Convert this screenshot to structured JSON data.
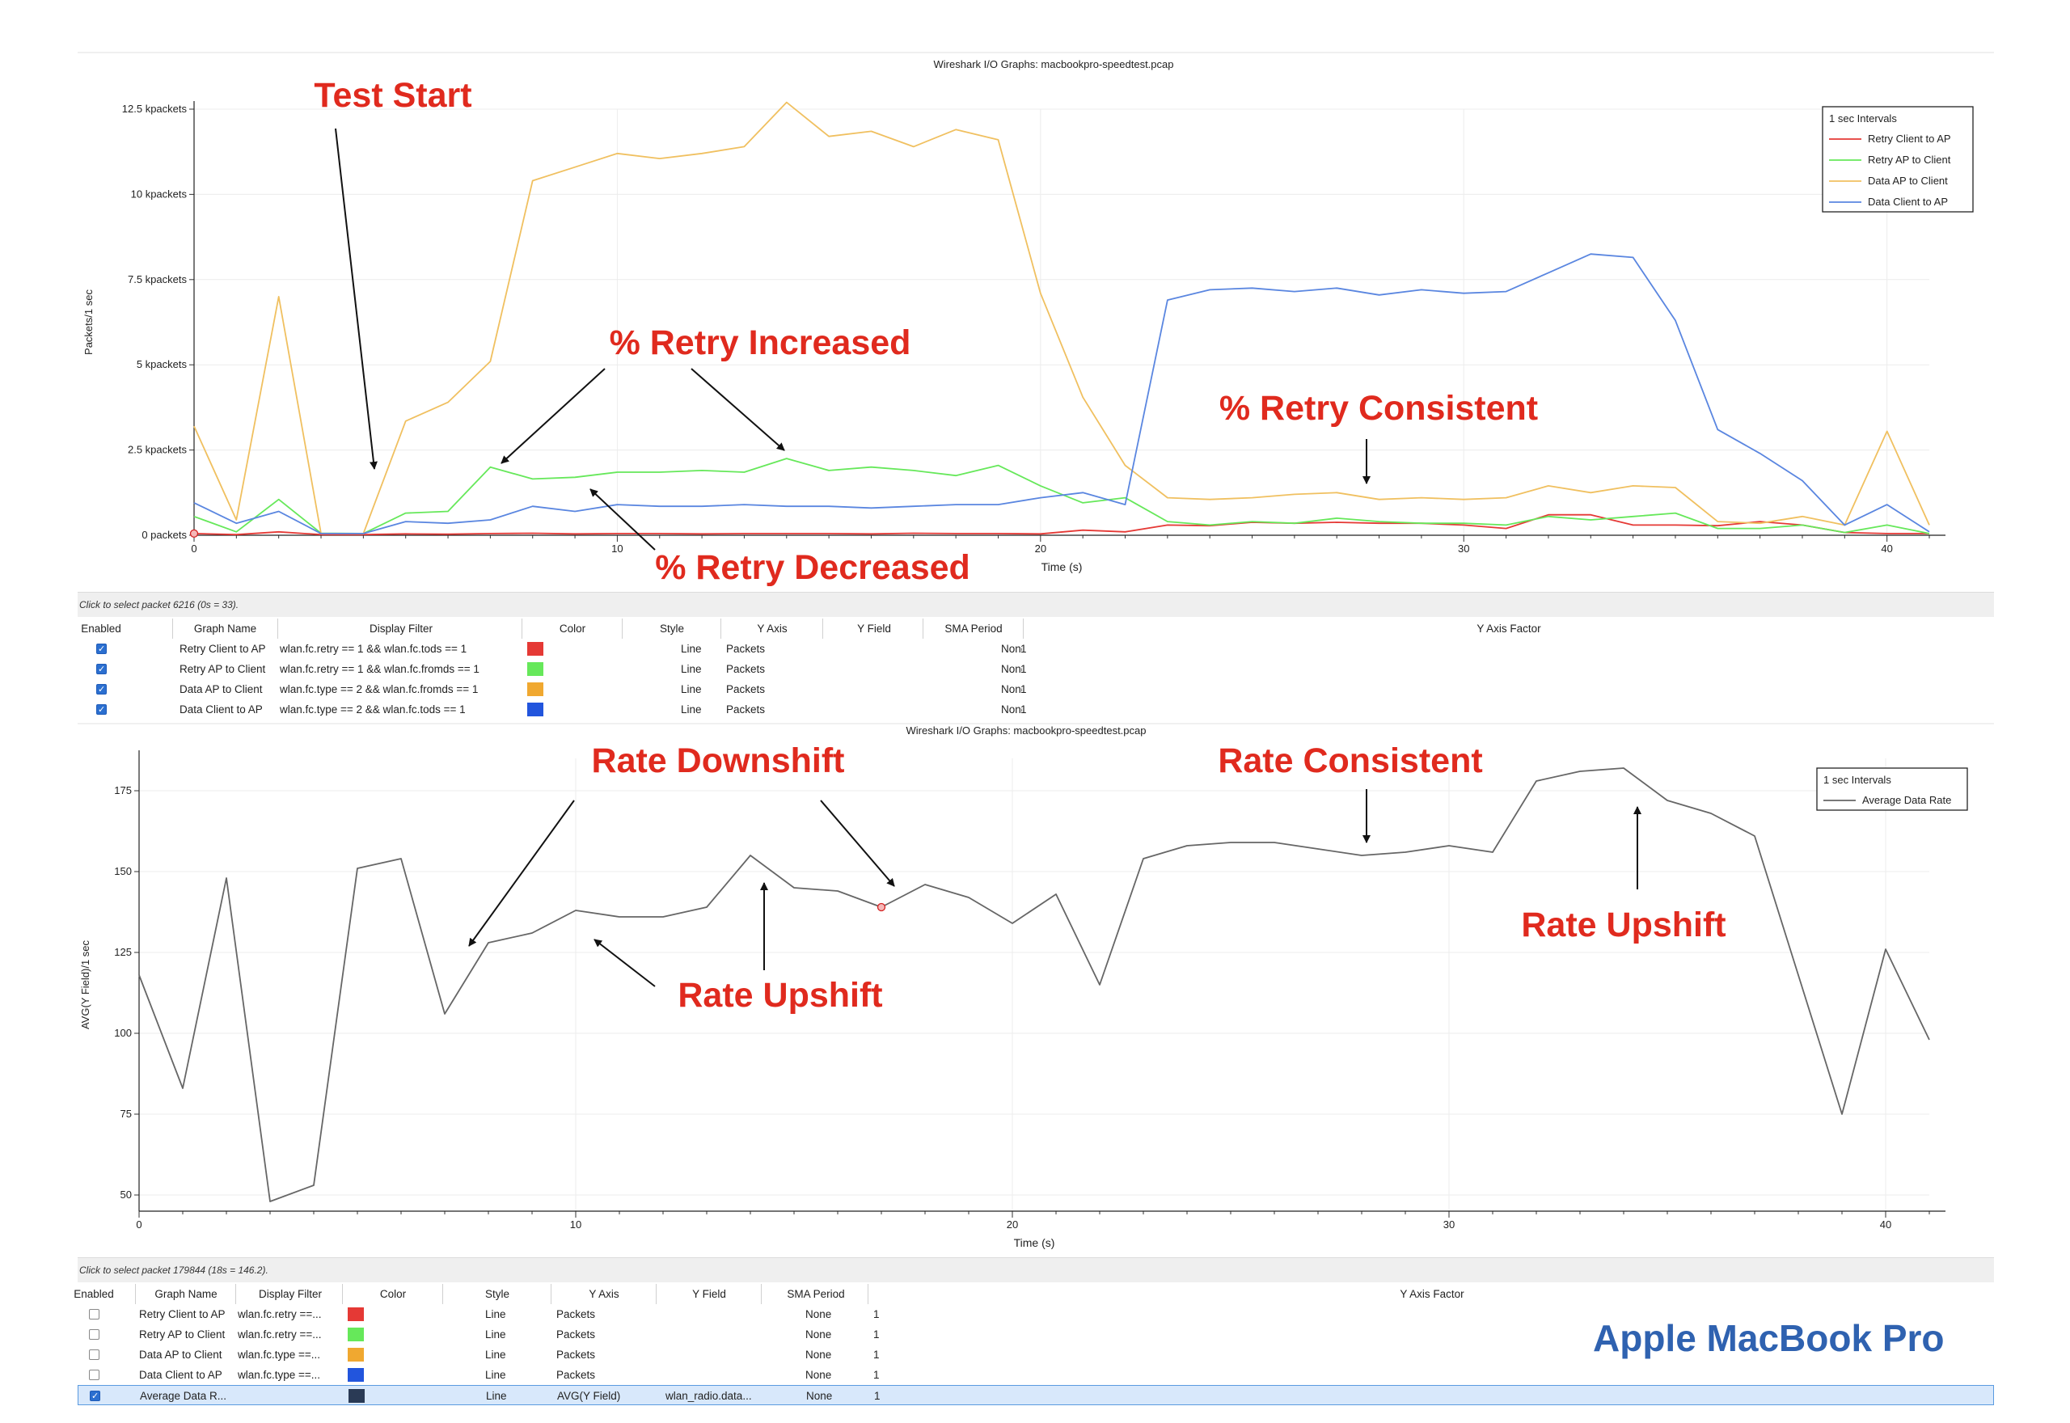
{
  "brand": "Apple MacBook Pro",
  "chart_data": [
    {
      "type": "line",
      "title": "Wireshark I/O Graphs: macbookpro-speedtest.pcap",
      "xlabel": "Time (s)",
      "ylabel": "Packets/1 sec",
      "xlim": [
        0,
        41
      ],
      "ylim": [
        0,
        12500
      ],
      "xticks": [
        0,
        10,
        20,
        30,
        40
      ],
      "yticks": [
        0,
        2500,
        5000,
        7500,
        10000,
        12500
      ],
      "ytick_labels": [
        "0 packets",
        "2.5 kpackets",
        "5 kpackets",
        "7.5 kpackets",
        "10 kpackets",
        "12.5 kpackets"
      ],
      "legend_title": "1 sec Intervals",
      "legend_position": "top-right",
      "x": [
        0,
        1,
        2,
        3,
        4,
        5,
        6,
        7,
        8,
        9,
        10,
        11,
        12,
        13,
        14,
        15,
        16,
        17,
        18,
        19,
        20,
        21,
        22,
        23,
        24,
        25,
        26,
        27,
        28,
        29,
        30,
        31,
        32,
        33,
        34,
        35,
        36,
        37,
        38,
        39,
        40,
        41
      ],
      "series": [
        {
          "name": "Retry Client to AP",
          "color": "#e53935",
          "values": [
            50,
            20,
            100,
            20,
            20,
            40,
            30,
            50,
            60,
            40,
            50,
            50,
            40,
            50,
            50,
            50,
            40,
            60,
            50,
            50,
            40,
            150,
            100,
            300,
            280,
            380,
            350,
            380,
            350,
            350,
            300,
            200,
            600,
            600,
            300,
            300,
            280,
            400,
            300,
            80,
            50,
            50
          ]
        },
        {
          "name": "Retry AP to Client",
          "color": "#66e85a",
          "values": [
            550,
            100,
            1050,
            60,
            50,
            650,
            700,
            2000,
            1650,
            1700,
            1850,
            1850,
            1900,
            1850,
            2250,
            1900,
            2000,
            1900,
            1750,
            2050,
            1450,
            950,
            1100,
            400,
            300,
            400,
            350,
            500,
            400,
            350,
            350,
            300,
            550,
            450,
            550,
            650,
            200,
            200,
            300,
            80,
            300,
            50
          ]
        },
        {
          "name": "Data AP to Client",
          "color": "#f0c060",
          "values": [
            3200,
            450,
            7000,
            50,
            50,
            3350,
            3900,
            5100,
            10400,
            10800,
            11200,
            11050,
            11200,
            11400,
            12700,
            11700,
            11850,
            11400,
            11900,
            11600,
            7100,
            4050,
            2050,
            1100,
            1050,
            1100,
            1200,
            1250,
            1050,
            1100,
            1050,
            1100,
            1450,
            1250,
            1450,
            1400,
            400,
            350,
            550,
            300,
            3050,
            300
          ]
        },
        {
          "name": "Data Client to AP",
          "color": "#5a86e0",
          "values": [
            950,
            350,
            700,
            50,
            50,
            400,
            350,
            450,
            850,
            700,
            900,
            850,
            850,
            900,
            850,
            850,
            800,
            850,
            900,
            900,
            1100,
            1250,
            900,
            6900,
            7200,
            7250,
            7150,
            7250,
            7050,
            7200,
            7100,
            7150,
            7700,
            8250,
            8150,
            6300,
            3100,
            2400,
            1600,
            300,
            900,
            100
          ]
        }
      ],
      "annotations": [
        "Test Start",
        "% Retry Increased",
        "% Retry Decreased",
        "% Retry Consistent"
      ]
    },
    {
      "type": "line",
      "title": "Wireshark I/O Graphs: macbookpro-speedtest.pcap",
      "xlabel": "Time (s)",
      "ylabel": "AVG(Y Field)/1 sec",
      "xlim": [
        0,
        41
      ],
      "ylim": [
        45,
        185
      ],
      "xticks": [
        0,
        10,
        20,
        30,
        40
      ],
      "yticks": [
        50,
        75,
        100,
        125,
        150,
        175
      ],
      "legend_title": "1 sec Intervals",
      "legend_position": "top-right",
      "x": [
        0,
        1,
        2,
        3,
        4,
        5,
        6,
        7,
        8,
        9,
        10,
        11,
        12,
        13,
        14,
        15,
        16,
        17,
        18,
        19,
        20,
        21,
        22,
        23,
        24,
        25,
        26,
        27,
        28,
        29,
        30,
        31,
        32,
        33,
        34,
        35,
        36,
        37,
        38,
        39,
        40,
        41
      ],
      "series": [
        {
          "name": "Average Data Rate",
          "color": "#666666",
          "values": [
            118,
            83,
            148,
            48,
            53,
            151,
            154,
            106,
            128,
            131,
            138,
            136,
            136,
            139,
            155,
            145,
            144,
            139,
            146,
            142,
            134,
            143,
            115,
            154,
            158,
            159,
            159,
            157,
            155,
            156,
            158,
            156,
            178,
            181,
            182,
            172,
            168,
            161,
            118,
            75,
            126,
            98
          ]
        }
      ],
      "annotations": [
        "Rate Downshift",
        "Rate Consistent",
        "Rate Upshift",
        "Rate Upshift"
      ]
    }
  ],
  "annotations": {
    "test_start": "Test Start",
    "retry_increased": "% Retry Increased",
    "retry_decreased": "% Retry Decreased",
    "retry_consistent": "% Retry Consistent",
    "rate_downshift": "Rate Downshift",
    "rate_consistent": "Rate Consistent",
    "rate_upshift_1": "Rate Upshift",
    "rate_upshift_2": "Rate Upshift"
  },
  "panel1": {
    "status": "Click to select packet 6216 (0s = 33).",
    "headers": [
      "Enabled",
      "Graph Name",
      "Display Filter",
      "Color",
      "Style",
      "Y Axis",
      "Y Field",
      "SMA Period",
      "Y Axis Factor"
    ],
    "rows": [
      {
        "enabled": true,
        "name": "Retry Client to AP",
        "filter": "wlan.fc.retry == 1 && wlan.fc.tods == 1",
        "color": "#e53935",
        "style": "Line",
        "yaxis": "Packets",
        "yfield": "",
        "sma": "None",
        "factor": "1"
      },
      {
        "enabled": true,
        "name": "Retry AP to Client",
        "filter": "wlan.fc.retry == 1 && wlan.fc.fromds == 1",
        "color": "#66e85a",
        "style": "Line",
        "yaxis": "Packets",
        "yfield": "",
        "sma": "None",
        "factor": "1"
      },
      {
        "enabled": true,
        "name": "Data AP to Client",
        "filter": "wlan.fc.type == 2 && wlan.fc.fromds == 1",
        "color": "#f0a830",
        "style": "Line",
        "yaxis": "Packets",
        "yfield": "",
        "sma": "None",
        "factor": "1"
      },
      {
        "enabled": true,
        "name": "Data Client to AP",
        "filter": "wlan.fc.type == 2 && wlan.fc.tods == 1",
        "color": "#2255dd",
        "style": "Line",
        "yaxis": "Packets",
        "yfield": "",
        "sma": "None",
        "factor": "1"
      }
    ]
  },
  "panel2": {
    "status": "Click to select packet 179844 (18s = 146.2).",
    "headers": [
      "Enabled",
      "Graph Name",
      "Display Filter",
      "Color",
      "Style",
      "Y Axis",
      "Y Field",
      "SMA Period",
      "Y Axis Factor"
    ],
    "rows": [
      {
        "enabled": false,
        "name": "Retry Client to AP",
        "filter": "wlan.fc.retry ==...",
        "color": "#e53935",
        "style": "Line",
        "yaxis": "Packets",
        "yfield": "",
        "sma": "None",
        "factor": "1"
      },
      {
        "enabled": false,
        "name": "Retry AP to Client",
        "filter": "wlan.fc.retry ==...",
        "color": "#66e85a",
        "style": "Line",
        "yaxis": "Packets",
        "yfield": "",
        "sma": "None",
        "factor": "1"
      },
      {
        "enabled": false,
        "name": "Data AP to Client",
        "filter": "wlan.fc.type ==...",
        "color": "#f0a830",
        "style": "Line",
        "yaxis": "Packets",
        "yfield": "",
        "sma": "None",
        "factor": "1"
      },
      {
        "enabled": false,
        "name": "Data Client to AP",
        "filter": "wlan.fc.type ==...",
        "color": "#2255dd",
        "style": "Line",
        "yaxis": "Packets",
        "yfield": "",
        "sma": "None",
        "factor": "1"
      },
      {
        "enabled": true,
        "name": "Average Data R...",
        "filter": "",
        "color": "#2a3a55",
        "style": "Line",
        "yaxis": "AVG(Y Field)",
        "yfield": "wlan_radio.data...",
        "sma": "None",
        "factor": "1",
        "selected": true
      }
    ]
  }
}
